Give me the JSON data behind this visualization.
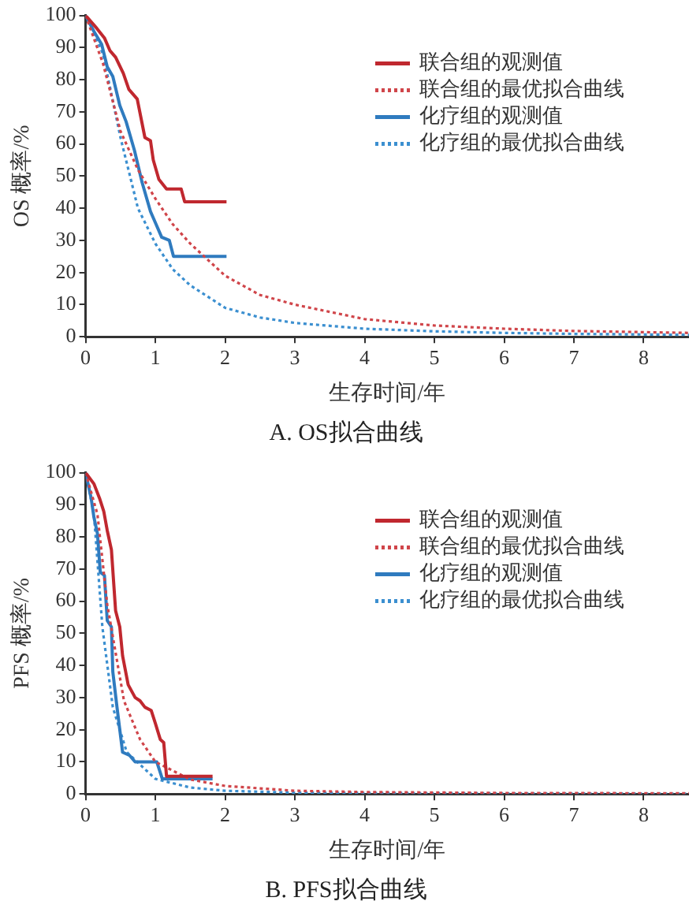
{
  "chart_data": [
    {
      "type": "line",
      "title": "A. OS拟合曲线",
      "xlabel": "生存时间/年",
      "ylabel": "OS 概率/%",
      "xlim": [
        0,
        8.65
      ],
      "xticks": [
        0,
        1,
        2,
        3,
        4,
        5,
        6,
        7,
        8
      ],
      "ylim": [
        0,
        100
      ],
      "yticks": [
        0,
        10,
        20,
        30,
        40,
        50,
        60,
        70,
        80,
        90,
        100
      ],
      "grid": false,
      "legend": "top right",
      "marker": "none",
      "series": [
        {
          "name": "联合组的观测值",
          "color": "#c0282f",
          "line_style": "solid",
          "x": [
            0,
            0.16,
            0.27,
            0.35,
            0.43,
            0.54,
            0.62,
            0.74,
            0.85,
            0.93,
            0.97,
            1.05,
            1.16,
            1.37,
            1.42,
            2.02
          ],
          "values": [
            100,
            96,
            93,
            89,
            87,
            82,
            77,
            74,
            62,
            61,
            55,
            49,
            46,
            46,
            42,
            42
          ]
        },
        {
          "name": "联合组的最优拟合曲线",
          "color": "#d0454a",
          "line_style": "dotted",
          "x": [
            0,
            0.25,
            0.5,
            0.75,
            1,
            1.25,
            1.5,
            2,
            2.5,
            3,
            4,
            5,
            6,
            7,
            8.65
          ],
          "values": [
            100,
            85,
            64,
            52,
            43,
            35,
            29,
            19,
            13,
            10,
            5.5,
            3.5,
            2.5,
            1.8,
            1.2
          ]
        },
        {
          "name": "化疗组的观测值",
          "color": "#2f7bbf",
          "line_style": "solid",
          "x": [
            0,
            0.12,
            0.23,
            0.31,
            0.39,
            0.49,
            0.58,
            0.7,
            0.81,
            0.93,
            1.01,
            1.09,
            1.2,
            1.26,
            2.02
          ],
          "values": [
            100,
            95,
            91,
            84,
            81,
            72,
            67,
            58,
            48,
            39,
            35,
            31,
            30,
            25,
            25
          ]
        },
        {
          "name": "化疗组的最优拟合曲线",
          "color": "#3b8fd0",
          "line_style": "dotted",
          "x": [
            0,
            0.25,
            0.5,
            0.75,
            1,
            1.25,
            1.5,
            2,
            2.5,
            3,
            4,
            5,
            6,
            7,
            8.65
          ],
          "values": [
            100,
            88,
            62,
            40,
            29,
            21,
            16,
            9,
            6,
            4.3,
            2.5,
            1.7,
            1.2,
            0.9,
            0.6
          ]
        }
      ]
    },
    {
      "type": "line",
      "title": "B. PFS拟合曲线",
      "xlabel": "生存时间/年",
      "ylabel": "PFS 概率/%",
      "xlim": [
        0,
        8.65
      ],
      "xticks": [
        0,
        1,
        2,
        3,
        4,
        5,
        6,
        7,
        8
      ],
      "ylim": [
        0,
        100
      ],
      "yticks": [
        0,
        10,
        20,
        30,
        40,
        50,
        60,
        70,
        80,
        90,
        100
      ],
      "grid": false,
      "legend": "top right",
      "marker": "none",
      "series": [
        {
          "name": "联合组的观测值",
          "color": "#c0282f",
          "line_style": "solid",
          "x": [
            0,
            0.12,
            0.2,
            0.26,
            0.31,
            0.37,
            0.43,
            0.49,
            0.53,
            0.61,
            0.71,
            0.78,
            0.85,
            0.94,
            1,
            1.07,
            1.12,
            1.16,
            1.82
          ],
          "values": [
            100,
            96.5,
            92,
            88,
            82,
            76,
            57,
            52,
            43,
            34,
            30,
            29,
            27,
            26,
            22,
            17,
            16,
            5.5,
            5.5
          ]
        },
        {
          "name": "联合组的最优拟合曲线",
          "color": "#d0454a",
          "line_style": "dotted",
          "x": [
            0,
            0.17,
            0.31,
            0.55,
            0.78,
            1,
            1.5,
            2,
            3,
            4,
            6,
            8.65
          ],
          "values": [
            100,
            87,
            59,
            29,
            17,
            10,
            4.5,
            2.5,
            1,
            0.6,
            0.3,
            0.2
          ]
        },
        {
          "name": "化疗组的观测值",
          "color": "#2f7bbf",
          "line_style": "solid",
          "x": [
            0,
            0.08,
            0.12,
            0.17,
            0.21,
            0.27,
            0.31,
            0.37,
            0.39,
            0.45,
            0.53,
            0.63,
            0.71,
            1.02,
            1.1,
            1.82
          ],
          "values": [
            100,
            92,
            86,
            81,
            69,
            68,
            54,
            52,
            38,
            27,
            13,
            12,
            10,
            10,
            4.7,
            4.7
          ]
        },
        {
          "name": "化疗组的最优拟合曲线",
          "color": "#3b8fd0",
          "line_style": "dotted",
          "x": [
            0,
            0.12,
            0.24,
            0.39,
            0.59,
            1,
            1.5,
            2,
            3,
            5,
            8.65
          ],
          "values": [
            100,
            87,
            52,
            27,
            13,
            4.7,
            2,
            1,
            0.4,
            0.2,
            0.1
          ]
        }
      ]
    }
  ]
}
